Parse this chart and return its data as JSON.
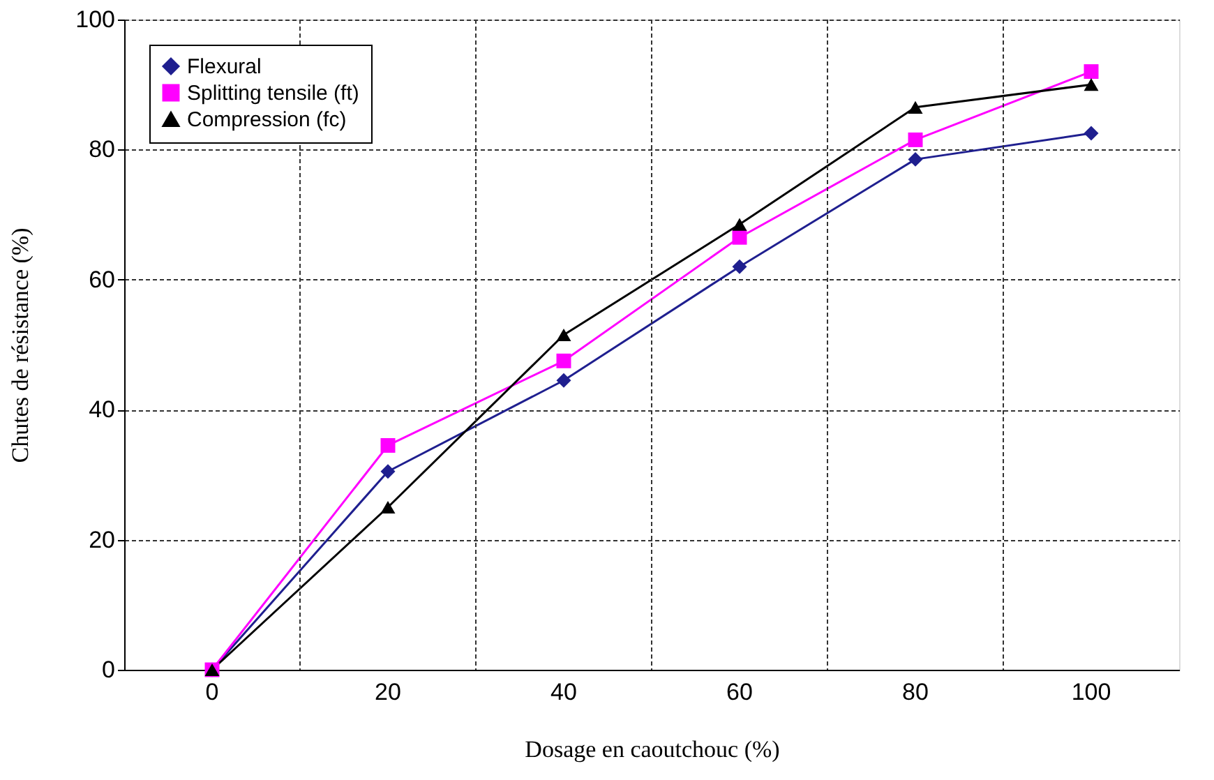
{
  "chart_data": {
    "type": "line",
    "xlabel": "Dosage en caoutchouc  (%)",
    "ylabel": "Chutes de résistance     (%)",
    "categories": [
      "0",
      "20",
      "40",
      "60",
      "80",
      "100"
    ],
    "series": [
      {
        "name": "Flexural",
        "color": "#1f1f8f",
        "marker": "diamond",
        "values": [
          0,
          30.5,
          44.5,
          62,
          78.5,
          82.5
        ]
      },
      {
        "name": "Splitting tensile (ft)",
        "color": "#ff00ff",
        "marker": "square",
        "values": [
          0,
          34.5,
          47.5,
          66.5,
          81.5,
          92
        ]
      },
      {
        "name": "Compression (fc)",
        "color": "#000000",
        "marker": "triangle",
        "values": [
          0,
          25,
          51.5,
          68.5,
          86.5,
          90
        ]
      }
    ],
    "ylim": [
      0,
      100
    ],
    "yticks": [
      0,
      20,
      40,
      60,
      80,
      100
    ],
    "grid": true,
    "legend": "top left",
    "line_style": "solid"
  }
}
